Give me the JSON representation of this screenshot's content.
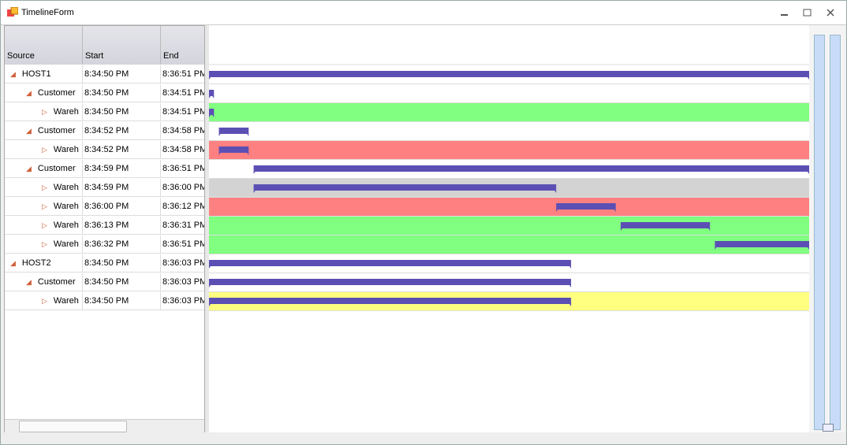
{
  "window": {
    "title": "TimelineForm"
  },
  "grid": {
    "columns": [
      "Source",
      "Start",
      "End"
    ],
    "rows": [
      {
        "source": "HOST1",
        "level": 0,
        "expanded": true,
        "start": "8:34:50 PM",
        "end": "8:36:51 PM",
        "fill": "#ffffff"
      },
      {
        "source": "Customer",
        "level": 1,
        "expanded": true,
        "start": "8:34:50 PM",
        "end": "8:34:51 PM",
        "fill": "#ffffff"
      },
      {
        "source": "Wareh",
        "level": 2,
        "expanded": false,
        "start": "8:34:50 PM",
        "end": "8:34:51 PM",
        "fill": "#80ff80"
      },
      {
        "source": "Customer",
        "level": 1,
        "expanded": true,
        "start": "8:34:52 PM",
        "end": "8:34:58 PM",
        "fill": "#ffffff"
      },
      {
        "source": "Wareh",
        "level": 2,
        "expanded": false,
        "start": "8:34:52 PM",
        "end": "8:34:58 PM",
        "fill": "#ff8080"
      },
      {
        "source": "Customer",
        "level": 1,
        "expanded": true,
        "start": "8:34:59 PM",
        "end": "8:36:51 PM",
        "fill": "#ffffff"
      },
      {
        "source": "Wareh",
        "level": 2,
        "expanded": false,
        "start": "8:34:59 PM",
        "end": "8:36:00 PM",
        "fill": "#d3d3d3"
      },
      {
        "source": "Wareh",
        "level": 2,
        "expanded": false,
        "start": "8:36:00 PM",
        "end": "8:36:12 PM",
        "fill": "#ff8080"
      },
      {
        "source": "Wareh",
        "level": 2,
        "expanded": false,
        "start": "8:36:13 PM",
        "end": "8:36:31 PM",
        "fill": "#80ff80"
      },
      {
        "source": "Wareh",
        "level": 2,
        "expanded": false,
        "start": "8:36:32 PM",
        "end": "8:36:51 PM",
        "fill": "#80ff80"
      },
      {
        "source": "HOST2",
        "level": 0,
        "expanded": true,
        "start": "8:34:50 PM",
        "end": "8:36:03 PM",
        "fill": "#ffffff"
      },
      {
        "source": "Customer",
        "level": 1,
        "expanded": true,
        "start": "8:34:50 PM",
        "end": "8:36:03 PM",
        "fill": "#ffffff"
      },
      {
        "source": "Wareh",
        "level": 2,
        "expanded": false,
        "start": "8:34:50 PM",
        "end": "8:36:03 PM",
        "fill": "#ffff80"
      }
    ]
  },
  "bar_color": "#5b4fb4"
}
